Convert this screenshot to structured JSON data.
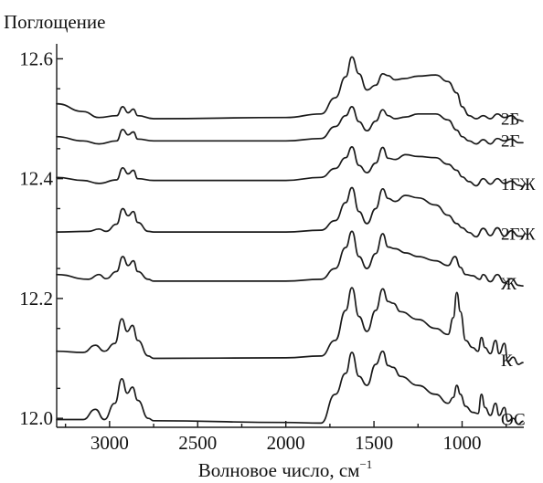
{
  "chart_data": {
    "type": "line",
    "ylabel": "Поглощение",
    "xlabel_base": "Волновое число, см",
    "xlabel_sup": "−1",
    "x_reversed": true,
    "xlim": [
      3300,
      650
    ],
    "ylim": [
      11.985,
      12.625
    ],
    "x_ticks": [
      3000,
      2500,
      2000,
      1500,
      1000
    ],
    "x_tick_labels": [
      "3000",
      "2500",
      "2000",
      "1500",
      "1000"
    ],
    "y_ticks": [
      12.0,
      12.2,
      12.4,
      12.6
    ],
    "y_tick_labels": [
      "12.0",
      "12.2",
      "12.4",
      "12.6"
    ],
    "series": [
      {
        "name": "2Б",
        "points": [
          [
            3300,
            12.525
          ],
          [
            3150,
            12.512
          ],
          [
            3060,
            12.502
          ],
          [
            2960,
            12.505
          ],
          [
            2925,
            12.52
          ],
          [
            2895,
            12.51
          ],
          [
            2865,
            12.516
          ],
          [
            2840,
            12.505
          ],
          [
            2750,
            12.5
          ],
          [
            2000,
            12.502
          ],
          [
            1800,
            12.508
          ],
          [
            1720,
            12.535
          ],
          [
            1660,
            12.57
          ],
          [
            1625,
            12.603
          ],
          [
            1585,
            12.575
          ],
          [
            1540,
            12.548
          ],
          [
            1490,
            12.556
          ],
          [
            1450,
            12.575
          ],
          [
            1420,
            12.572
          ],
          [
            1380,
            12.565
          ],
          [
            1330,
            12.567
          ],
          [
            1250,
            12.571
          ],
          [
            1150,
            12.573
          ],
          [
            1080,
            12.562
          ],
          [
            1030,
            12.543
          ],
          [
            1000,
            12.52
          ],
          [
            960,
            12.505
          ],
          [
            920,
            12.5
          ],
          [
            880,
            12.505
          ],
          [
            840,
            12.5
          ],
          [
            800,
            12.508
          ],
          [
            760,
            12.502
          ],
          [
            720,
            12.505
          ],
          [
            680,
            12.498
          ],
          [
            655,
            12.496
          ]
        ]
      },
      {
        "name": "2Г",
        "points": [
          [
            3300,
            12.47
          ],
          [
            3150,
            12.463
          ],
          [
            3060,
            12.458
          ],
          [
            2960,
            12.463
          ],
          [
            2925,
            12.482
          ],
          [
            2895,
            12.473
          ],
          [
            2865,
            12.478
          ],
          [
            2840,
            12.466
          ],
          [
            2750,
            12.463
          ],
          [
            2000,
            12.463
          ],
          [
            1800,
            12.467
          ],
          [
            1720,
            12.487
          ],
          [
            1660,
            12.505
          ],
          [
            1625,
            12.52
          ],
          [
            1585,
            12.495
          ],
          [
            1540,
            12.48
          ],
          [
            1490,
            12.496
          ],
          [
            1450,
            12.515
          ],
          [
            1420,
            12.505
          ],
          [
            1380,
            12.5
          ],
          [
            1320,
            12.503
          ],
          [
            1250,
            12.508
          ],
          [
            1150,
            12.508
          ],
          [
            1080,
            12.498
          ],
          [
            1030,
            12.481
          ],
          [
            1000,
            12.47
          ],
          [
            960,
            12.463
          ],
          [
            920,
            12.458
          ],
          [
            880,
            12.465
          ],
          [
            840,
            12.458
          ],
          [
            800,
            12.467
          ],
          [
            760,
            12.463
          ],
          [
            720,
            12.466
          ],
          [
            680,
            12.46
          ],
          [
            655,
            12.46
          ]
        ]
      },
      {
        "name": "1ГЖ",
        "points": [
          [
            3300,
            12.402
          ],
          [
            3150,
            12.397
          ],
          [
            3060,
            12.392
          ],
          [
            2960,
            12.398
          ],
          [
            2925,
            12.418
          ],
          [
            2895,
            12.408
          ],
          [
            2865,
            12.414
          ],
          [
            2840,
            12.4
          ],
          [
            2750,
            12.397
          ],
          [
            2000,
            12.397
          ],
          [
            1800,
            12.402
          ],
          [
            1720,
            12.417
          ],
          [
            1660,
            12.435
          ],
          [
            1625,
            12.453
          ],
          [
            1585,
            12.422
          ],
          [
            1540,
            12.41
          ],
          [
            1490,
            12.426
          ],
          [
            1450,
            12.452
          ],
          [
            1420,
            12.434
          ],
          [
            1380,
            12.432
          ],
          [
            1320,
            12.44
          ],
          [
            1250,
            12.437
          ],
          [
            1150,
            12.435
          ],
          [
            1080,
            12.424
          ],
          [
            1030,
            12.414
          ],
          [
            1000,
            12.403
          ],
          [
            960,
            12.395
          ],
          [
            920,
            12.388
          ],
          [
            880,
            12.4
          ],
          [
            840,
            12.391
          ],
          [
            800,
            12.4
          ],
          [
            760,
            12.392
          ],
          [
            720,
            12.396
          ],
          [
            680,
            12.389
          ],
          [
            655,
            12.387
          ]
        ]
      },
      {
        "name": "2ГЖ",
        "points": [
          [
            3300,
            12.311
          ],
          [
            3120,
            12.312
          ],
          [
            3060,
            12.316
          ],
          [
            3020,
            12.312
          ],
          [
            2960,
            12.324
          ],
          [
            2925,
            12.35
          ],
          [
            2895,
            12.338
          ],
          [
            2865,
            12.345
          ],
          [
            2840,
            12.327
          ],
          [
            2780,
            12.312
          ],
          [
            2750,
            12.311
          ],
          [
            2000,
            12.311
          ],
          [
            1800,
            12.314
          ],
          [
            1720,
            12.33
          ],
          [
            1660,
            12.36
          ],
          [
            1625,
            12.385
          ],
          [
            1585,
            12.345
          ],
          [
            1540,
            12.325
          ],
          [
            1490,
            12.35
          ],
          [
            1450,
            12.383
          ],
          [
            1420,
            12.367
          ],
          [
            1380,
            12.362
          ],
          [
            1320,
            12.372
          ],
          [
            1250,
            12.368
          ],
          [
            1150,
            12.356
          ],
          [
            1080,
            12.339
          ],
          [
            1030,
            12.325
          ],
          [
            1000,
            12.318
          ],
          [
            960,
            12.31
          ],
          [
            920,
            12.303
          ],
          [
            880,
            12.317
          ],
          [
            840,
            12.305
          ],
          [
            800,
            12.318
          ],
          [
            760,
            12.304
          ],
          [
            720,
            12.313
          ],
          [
            680,
            12.304
          ],
          [
            655,
            12.304
          ]
        ]
      },
      {
        "name": "Ж",
        "points": [
          [
            3300,
            12.24
          ],
          [
            3120,
            12.232
          ],
          [
            3060,
            12.24
          ],
          [
            3020,
            12.233
          ],
          [
            2960,
            12.245
          ],
          [
            2925,
            12.27
          ],
          [
            2895,
            12.255
          ],
          [
            2865,
            12.263
          ],
          [
            2840,
            12.245
          ],
          [
            2780,
            12.232
          ],
          [
            2750,
            12.229
          ],
          [
            2000,
            12.229
          ],
          [
            1800,
            12.232
          ],
          [
            1720,
            12.25
          ],
          [
            1660,
            12.285
          ],
          [
            1625,
            12.312
          ],
          [
            1585,
            12.27
          ],
          [
            1540,
            12.25
          ],
          [
            1490,
            12.275
          ],
          [
            1450,
            12.308
          ],
          [
            1420,
            12.286
          ],
          [
            1380,
            12.283
          ],
          [
            1320,
            12.276
          ],
          [
            1250,
            12.27
          ],
          [
            1150,
            12.263
          ],
          [
            1080,
            12.255
          ],
          [
            1040,
            12.27
          ],
          [
            1010,
            12.252
          ],
          [
            980,
            12.24
          ],
          [
            940,
            12.238
          ],
          [
            900,
            12.232
          ],
          [
            880,
            12.24
          ],
          [
            840,
            12.228
          ],
          [
            800,
            12.24
          ],
          [
            760,
            12.226
          ],
          [
            720,
            12.233
          ],
          [
            680,
            12.222
          ],
          [
            655,
            12.221
          ]
        ]
      },
      {
        "name": "К",
        "points": [
          [
            3300,
            12.112
          ],
          [
            3150,
            12.11
          ],
          [
            3080,
            12.122
          ],
          [
            3030,
            12.112
          ],
          [
            2970,
            12.125
          ],
          [
            2930,
            12.166
          ],
          [
            2900,
            12.145
          ],
          [
            2870,
            12.155
          ],
          [
            2840,
            12.13
          ],
          [
            2780,
            12.104
          ],
          [
            2750,
            12.1
          ],
          [
            2000,
            12.101
          ],
          [
            1800,
            12.104
          ],
          [
            1720,
            12.13
          ],
          [
            1660,
            12.18
          ],
          [
            1625,
            12.218
          ],
          [
            1585,
            12.17
          ],
          [
            1540,
            12.145
          ],
          [
            1490,
            12.18
          ],
          [
            1450,
            12.216
          ],
          [
            1420,
            12.195
          ],
          [
            1390,
            12.192
          ],
          [
            1350,
            12.178
          ],
          [
            1250,
            12.165
          ],
          [
            1150,
            12.15
          ],
          [
            1080,
            12.14
          ],
          [
            1050,
            12.168
          ],
          [
            1030,
            12.21
          ],
          [
            1010,
            12.178
          ],
          [
            980,
            12.13
          ],
          [
            940,
            12.118
          ],
          [
            910,
            12.112
          ],
          [
            890,
            12.135
          ],
          [
            870,
            12.118
          ],
          [
            840,
            12.108
          ],
          [
            810,
            12.13
          ],
          [
            790,
            12.108
          ],
          [
            760,
            12.125
          ],
          [
            740,
            12.095
          ],
          [
            710,
            12.102
          ],
          [
            680,
            12.09
          ],
          [
            655,
            12.093
          ]
        ]
      },
      {
        "name": "ОС",
        "points": [
          [
            3300,
            11.998
          ],
          [
            3150,
            11.998
          ],
          [
            3080,
            12.015
          ],
          [
            3030,
            11.998
          ],
          [
            2970,
            12.025
          ],
          [
            2930,
            12.066
          ],
          [
            2900,
            12.042
          ],
          [
            2870,
            12.052
          ],
          [
            2840,
            12.03
          ],
          [
            2780,
            12.0
          ],
          [
            2750,
            11.996
          ],
          [
            2000,
            11.993
          ],
          [
            1800,
            11.992
          ],
          [
            1720,
            12.04
          ],
          [
            1660,
            12.075
          ],
          [
            1625,
            12.11
          ],
          [
            1585,
            12.07
          ],
          [
            1540,
            12.055
          ],
          [
            1490,
            12.09
          ],
          [
            1450,
            12.112
          ],
          [
            1420,
            12.088
          ],
          [
            1390,
            12.085
          ],
          [
            1350,
            12.07
          ],
          [
            1250,
            12.055
          ],
          [
            1150,
            12.04
          ],
          [
            1080,
            12.025
          ],
          [
            1050,
            12.035
          ],
          [
            1030,
            12.055
          ],
          [
            1010,
            12.04
          ],
          [
            980,
            12.02
          ],
          [
            940,
            12.01
          ],
          [
            910,
            12.008
          ],
          [
            890,
            12.04
          ],
          [
            870,
            12.018
          ],
          [
            840,
            12.005
          ],
          [
            810,
            12.025
          ],
          [
            790,
            12.005
          ],
          [
            760,
            12.018
          ],
          [
            740,
            11.995
          ],
          [
            710,
            12.0
          ],
          [
            680,
            11.99
          ],
          [
            655,
            11.995
          ]
        ]
      }
    ]
  }
}
